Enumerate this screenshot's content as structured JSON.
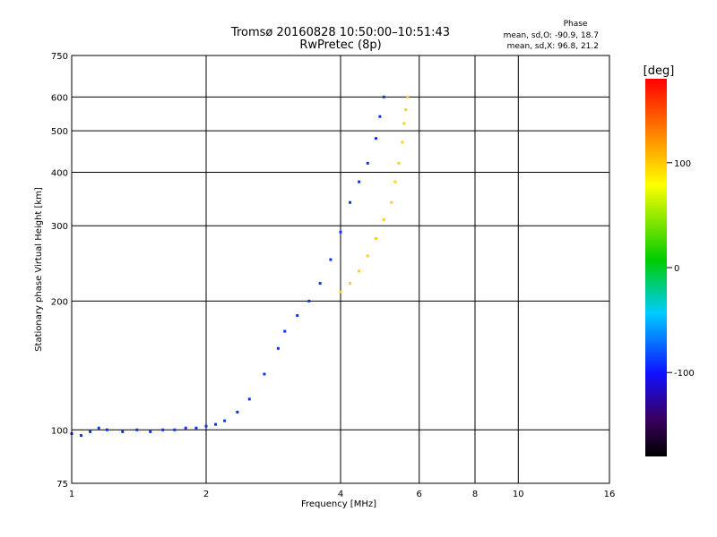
{
  "chart_data": {
    "type": "scatter",
    "title": "Tromsø 20160828 10:50:00–10:51:43",
    "subtitle": "RwPretec (8p)",
    "xlabel": "Frequency [MHz]",
    "ylabel": "Stationary phase Virtual Height [km]",
    "x_scale": "log",
    "y_scale": "log",
    "xlim": [
      1,
      16
    ],
    "ylim": [
      75,
      750
    ],
    "x_ticks": [
      "1",
      "2",
      "4",
      "6",
      "8",
      "10",
      "16"
    ],
    "y_ticks": [
      "75",
      "100",
      "200",
      "300",
      "400",
      "500",
      "600",
      "750"
    ],
    "grid": true,
    "phase_note": {
      "title": "Phase",
      "line1": "mean, sd,O:  -90.9, 18.7",
      "line2": "mean, sd,X:  96.8, 21.2"
    },
    "colorbar": {
      "label": "[deg]",
      "ticks": [
        "100",
        "0",
        "-100"
      ],
      "range": [
        -180,
        180
      ]
    },
    "traces": [
      {
        "mode": "O",
        "phase_mean": -90.9,
        "phase_sd": 18.7,
        "points": [
          [
            1.0,
            98
          ],
          [
            1.05,
            97
          ],
          [
            1.1,
            99
          ],
          [
            1.15,
            101
          ],
          [
            1.2,
            100
          ],
          [
            1.3,
            99
          ],
          [
            1.4,
            100
          ],
          [
            1.5,
            99
          ],
          [
            1.6,
            100
          ],
          [
            1.7,
            100
          ],
          [
            1.8,
            101
          ],
          [
            1.9,
            101
          ],
          [
            2.0,
            102
          ],
          [
            2.1,
            103
          ],
          [
            2.2,
            105
          ],
          [
            2.35,
            110
          ],
          [
            2.5,
            118
          ],
          [
            2.7,
            135
          ],
          [
            2.9,
            155
          ],
          [
            3.0,
            170
          ],
          [
            3.2,
            185
          ],
          [
            3.4,
            200
          ],
          [
            3.6,
            220
          ],
          [
            3.8,
            250
          ],
          [
            4.0,
            290
          ],
          [
            4.2,
            340
          ],
          [
            4.4,
            380
          ],
          [
            4.6,
            420
          ],
          [
            4.8,
            480
          ],
          [
            4.9,
            540
          ],
          [
            5.0,
            600
          ]
        ]
      },
      {
        "mode": "X",
        "phase_mean": 96.8,
        "phase_sd": 21.2,
        "points": [
          [
            4.0,
            210
          ],
          [
            4.2,
            220
          ],
          [
            4.4,
            235
          ],
          [
            4.6,
            255
          ],
          [
            4.8,
            280
          ],
          [
            5.0,
            310
          ],
          [
            5.2,
            340
          ],
          [
            5.3,
            380
          ],
          [
            5.4,
            420
          ],
          [
            5.5,
            470
          ],
          [
            5.55,
            520
          ],
          [
            5.6,
            560
          ],
          [
            5.65,
            600
          ]
        ]
      }
    ]
  }
}
